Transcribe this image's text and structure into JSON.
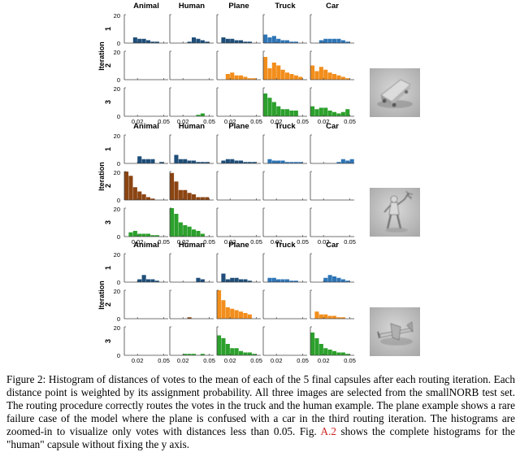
{
  "figure": {
    "column_titles": [
      "Animal",
      "Human",
      "Plane",
      "Truck",
      "Car"
    ],
    "y_axis_label": "Iteration",
    "row_labels": [
      "1",
      "2",
      "3"
    ],
    "y_ticks": [
      "0",
      "20"
    ],
    "x_ticks": [
      "0.02",
      "0.05"
    ],
    "colors": {
      "iteration_1": [
        "#1f4e79",
        "#2e75b6"
      ],
      "iteration_2": [
        "#8b4513",
        "#f28e1c"
      ],
      "iteration_3": [
        "#2ca02c"
      ]
    },
    "example_images": [
      "truck-image",
      "human-image",
      "plane-image"
    ]
  },
  "caption": {
    "part1": "Figure 2: Histogram of distances of votes to the mean of each of the 5 final capsules after each routing iteration. Each distance point is weighted by its assignment probability. All three images are selected from the smallNORB test set. The routing procedure correctly routes the votes in the truck and the human example. The plane example shows a rare failure case of the model where the plane is confused with a car in the third routing iteration. The histograms are zoomed-in to visualize only votes with distances less than 0.05. Fig. ",
    "ref": "A.2",
    "part2": " shows the complete histograms for the \"human\" capsule without fixing the y axis."
  },
  "chart_data": [
    {
      "type": "bar",
      "title": "Truck example",
      "xlim": [
        0.005,
        0.055
      ],
      "ylim": [
        0,
        20
      ],
      "bins": [
        0.0075,
        0.0125,
        0.0175,
        0.0225,
        0.0275,
        0.0325,
        0.0375,
        0.0425,
        0.0475,
        0.0525
      ],
      "columns": [
        "Animal",
        "Human",
        "Plane",
        "Truck",
        "Car"
      ],
      "iterations": [
        [
          [
            0,
            0,
            4,
            3,
            3,
            2,
            1,
            1,
            0,
            0
          ],
          [
            0,
            0,
            0,
            0,
            1,
            4,
            3,
            2,
            1,
            0
          ],
          [
            0,
            4,
            3,
            3,
            2,
            2,
            1,
            1,
            0,
            0
          ],
          [
            6,
            4,
            5,
            3,
            2,
            2,
            1,
            1,
            0,
            0
          ],
          [
            0,
            0,
            2,
            3,
            3,
            3,
            3,
            2,
            1,
            0
          ]
        ],
        [
          [
            0,
            0,
            0,
            0,
            0,
            0,
            0,
            0,
            0,
            0
          ],
          [
            0,
            0,
            0,
            0,
            0,
            0,
            0,
            0,
            0,
            0
          ],
          [
            0,
            0,
            4,
            5,
            3,
            3,
            2,
            1,
            1,
            0
          ],
          [
            16,
            8,
            12,
            10,
            7,
            5,
            4,
            3,
            2,
            0
          ],
          [
            10,
            6,
            9,
            7,
            5,
            4,
            3,
            2,
            1,
            0
          ]
        ],
        [
          [
            0,
            0,
            0,
            0,
            0,
            0,
            0,
            0,
            0,
            0
          ],
          [
            0,
            0,
            0,
            0,
            0,
            0,
            1,
            2,
            0,
            0
          ],
          [
            0,
            0,
            0,
            0,
            0,
            0,
            0,
            0,
            0,
            0
          ],
          [
            16,
            13,
            10,
            7,
            5,
            5,
            4,
            4,
            0,
            0
          ],
          [
            7,
            5,
            6,
            6,
            4,
            3,
            2,
            3,
            5,
            0
          ]
        ]
      ]
    },
    {
      "type": "bar",
      "title": "Human example",
      "xlim": [
        0.005,
        0.055
      ],
      "ylim": [
        0,
        20
      ],
      "bins": [
        0.0075,
        0.0125,
        0.0175,
        0.0225,
        0.0275,
        0.0325,
        0.0375,
        0.0425,
        0.0475,
        0.0525
      ],
      "columns": [
        "Animal",
        "Human",
        "Plane",
        "Truck",
        "Car"
      ],
      "iterations": [
        [
          [
            0,
            0,
            0,
            5,
            3,
            3,
            3,
            0,
            1,
            0
          ],
          [
            0,
            6,
            3,
            3,
            2,
            2,
            1,
            1,
            1,
            0
          ],
          [
            0,
            2,
            3,
            3,
            2,
            2,
            1,
            1,
            1,
            0
          ],
          [
            0,
            3,
            2,
            2,
            2,
            1,
            1,
            1,
            1,
            0
          ],
          [
            0,
            0,
            0,
            0,
            0,
            0,
            1,
            3,
            2,
            3
          ]
        ],
        [
          [
            20,
            17,
            9,
            6,
            4,
            2,
            1,
            0,
            0,
            0
          ],
          [
            19,
            13,
            7,
            7,
            5,
            4,
            2,
            2,
            2,
            0
          ],
          [
            0,
            0,
            0,
            0,
            0,
            0,
            0,
            0,
            0,
            0
          ],
          [
            0,
            0,
            0,
            0,
            0,
            0,
            0,
            0,
            0,
            0
          ],
          [
            0,
            0,
            0,
            0,
            0,
            0,
            0,
            0,
            0,
            0
          ]
        ],
        [
          [
            0,
            3,
            4,
            2,
            2,
            2,
            1,
            1,
            0,
            0
          ],
          [
            21,
            16,
            10,
            8,
            7,
            5,
            4,
            2,
            0,
            0
          ],
          [
            0,
            0,
            0,
            0,
            0,
            0,
            0,
            0,
            0,
            0
          ],
          [
            0,
            0,
            0,
            0,
            0,
            0,
            0,
            0,
            0,
            0
          ],
          [
            0,
            0,
            0,
            0,
            0,
            0,
            0,
            0,
            0,
            0
          ]
        ]
      ]
    },
    {
      "type": "bar",
      "title": "Plane example",
      "xlim": [
        0.005,
        0.055
      ],
      "ylim": [
        0,
        20
      ],
      "bins": [
        0.0075,
        0.0125,
        0.0175,
        0.0225,
        0.0275,
        0.0325,
        0.0375,
        0.0425,
        0.0475,
        0.0525
      ],
      "columns": [
        "Animal",
        "Human",
        "Plane",
        "Truck",
        "Car"
      ],
      "iterations": [
        [
          [
            0,
            0,
            0,
            2,
            5,
            2,
            2,
            1,
            0,
            0
          ],
          [
            0,
            0,
            0,
            0,
            0,
            0,
            3,
            2,
            0,
            0
          ],
          [
            0,
            6,
            2,
            3,
            3,
            2,
            2,
            1,
            0,
            0
          ],
          [
            0,
            3,
            3,
            2,
            2,
            2,
            1,
            1,
            0,
            0
          ],
          [
            0,
            0,
            0,
            3,
            5,
            4,
            3,
            2,
            1,
            0
          ]
        ],
        [
          [
            0,
            0,
            0,
            0,
            0,
            0,
            0,
            0,
            0,
            0
          ],
          [
            0,
            0,
            0,
            0,
            1,
            0,
            0,
            0,
            0,
            0
          ],
          [
            20,
            13,
            8,
            7,
            6,
            5,
            4,
            3,
            0,
            0
          ],
          [
            0,
            0,
            0,
            0,
            0,
            0,
            0,
            0,
            0,
            0
          ],
          [
            0,
            5,
            3,
            3,
            2,
            2,
            1,
            1,
            0,
            0
          ]
        ],
        [
          [
            0,
            0,
            0,
            0,
            0,
            0,
            0,
            0,
            0,
            0
          ],
          [
            0,
            0,
            0,
            1,
            1,
            1,
            0,
            1,
            0,
            0
          ],
          [
            14,
            12,
            8,
            5,
            5,
            3,
            2,
            2,
            1,
            0
          ],
          [
            0,
            0,
            0,
            0,
            0,
            0,
            0,
            0,
            0,
            0
          ],
          [
            16,
            12,
            8,
            5,
            4,
            3,
            2,
            2,
            1,
            0
          ]
        ]
      ]
    }
  ]
}
